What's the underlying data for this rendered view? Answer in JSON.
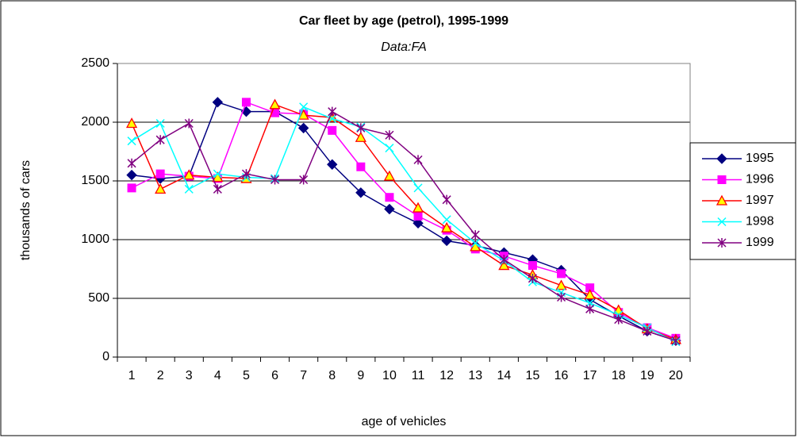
{
  "chart_data": {
    "type": "line",
    "title": "Car fleet by age (petrol), 1995-1999",
    "subtitle": "Data:FA",
    "x_label": "age of vehicles",
    "y_label": "thousands of cars",
    "categories": [
      "1",
      "2",
      "3",
      "4",
      "5",
      "6",
      "7",
      "8",
      "9",
      "10",
      "11",
      "12",
      "13",
      "14",
      "15",
      "16",
      "17",
      "18",
      "19",
      "20"
    ],
    "ylim": [
      0,
      2500
    ],
    "yticks": [
      0,
      500,
      1000,
      1500,
      2000,
      2500
    ],
    "grid": true,
    "legend": "right",
    "series": [
      {
        "name": "1995",
        "color": "#000080",
        "values": [
          1550,
          1520,
          1540,
          2170,
          2090,
          2090,
          1950,
          1640,
          1400,
          1260,
          1140,
          990,
          950,
          890,
          830,
          740,
          490,
          350,
          220,
          140
        ]
      },
      {
        "name": "1996",
        "color": "#ff00ff",
        "values": [
          1440,
          1560,
          1540,
          1520,
          2170,
          2080,
          2070,
          1930,
          1620,
          1360,
          1200,
          1080,
          920,
          860,
          780,
          710,
          590,
          380,
          250,
          160
        ]
      },
      {
        "name": "1997",
        "color": "#ff0000",
        "values": [
          1990,
          1430,
          1550,
          1530,
          1520,
          2150,
          2060,
          2040,
          1870,
          1540,
          1270,
          1100,
          940,
          780,
          700,
          610,
          530,
          400,
          240,
          150
        ]
      },
      {
        "name": "1998",
        "color": "#00ffff",
        "values": [
          1840,
          1990,
          1430,
          1560,
          1530,
          1520,
          2130,
          2030,
          1960,
          1780,
          1440,
          1170,
          970,
          820,
          640,
          550,
          460,
          360,
          250,
          130
        ]
      },
      {
        "name": "1999",
        "color": "#800080",
        "values": [
          1650,
          1850,
          1990,
          1430,
          1560,
          1510,
          1510,
          2090,
          1950,
          1890,
          1680,
          1340,
          1040,
          830,
          670,
          510,
          410,
          320,
          220,
          140
        ]
      }
    ]
  }
}
